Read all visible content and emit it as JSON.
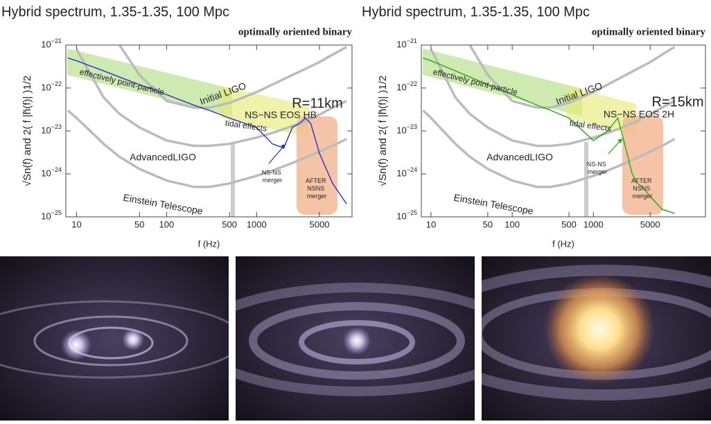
{
  "chart_data": [
    {
      "type": "line",
      "title": "Hybrid spectrum, 1.35-1.35, 100 Mpc",
      "subtitle": "optimally oriented binary",
      "x_label": "f (Hz)",
      "y_label": "√Sn(f)  and  2( f |h̃(f)| )1/2",
      "xscale": "log",
      "yscale": "log",
      "xlim": [
        7.6,
        11500
      ],
      "ylim": [
        1e-25,
        1e-21
      ],
      "xticks": [
        10,
        50,
        100,
        500,
        1000,
        5000
      ],
      "yticks": [
        {
          "value": 1e-25,
          "label": "10−25"
        },
        {
          "value": 1e-24,
          "label": "10−24"
        },
        {
          "value": 1e-23,
          "label": "10−23"
        },
        {
          "value": 1e-22,
          "label": "10−22"
        },
        {
          "value": 1e-21,
          "label": "10−21"
        }
      ],
      "x": [
        8,
        10,
        20,
        30,
        50,
        100,
        200,
        300,
        500,
        1000,
        1500,
        2000,
        2500,
        3000,
        3500,
        4000,
        5000,
        7000,
        10000
      ],
      "series": [
        {
          "name": "Initial LIGO",
          "color": "#bbbbbb",
          "values": [
            null,
            null,
            null,
            1e-21,
            2e-22,
            5e-23,
            3.5e-23,
            3.5e-23,
            4.5e-23,
            8e-23,
            1.2e-22,
            1.6e-22,
            2e-22,
            2.4e-22,
            2.8e-22,
            3.2e-22,
            4e-22,
            6e-22,
            9e-22
          ]
        },
        {
          "name": "AdvancedLIGO",
          "color": "#bbbbbb",
          "values": [
            null,
            8e-22,
            6e-23,
            2.5e-23,
            1.2e-23,
            6e-24,
            4.5e-24,
            4.5e-24,
            5e-24,
            7e-24,
            9e-24,
            1.1e-23,
            1.3e-23,
            1.5e-23,
            1.7e-23,
            2e-23,
            2.4e-23,
            3.5e-23,
            5e-23
          ]
        },
        {
          "name": "Einstein Telescope",
          "color": "#bbbbbb",
          "values": [
            3e-23,
            2e-23,
            5e-24,
            2.5e-24,
            1.3e-24,
            7e-25,
            5e-25,
            5e-25,
            6e-25,
            9e-25,
            1.2e-24,
            1.5e-24,
            1.8e-24,
            2.1e-24,
            2.4e-24,
            2.7e-24,
            3.3e-24,
            4.5e-24,
            6.5e-24
          ]
        },
        {
          "name": "R=11km",
          "color": "#2233cc",
          "values": [
            5e-22,
            4.3e-22,
            2.5e-22,
            1.8e-22,
            1.2e-22,
            7e-23,
            4e-23,
            3e-23,
            2e-23,
            1.2e-23,
            5e-24,
            4e-24,
            1.2e-23,
            1.5e-23,
            2e-23,
            1.5e-23,
            3e-24,
            6e-25,
            2e-25
          ]
        }
      ],
      "annotations": [
        "effectively point-particle",
        "tidal effects",
        "NS−NS EOS HB",
        "NS-NS merger",
        "AFTER NSNS merger"
      ]
    },
    {
      "type": "line",
      "title": "Hybrid spectrum, 1.35-1.35, 100 Mpc",
      "subtitle": "optimally oriented binary",
      "x_label": "f (Hz)",
      "y_label": "√Sn(f)  and  2( f |h̃(f)| )1/2",
      "xscale": "log",
      "yscale": "log",
      "xlim": [
        7.6,
        24000
      ],
      "ylim": [
        1e-25,
        1e-21
      ],
      "xticks": [
        10,
        50,
        100,
        500,
        1000,
        5000
      ],
      "yticks": [
        {
          "value": 1e-25,
          "label": "10−25"
        },
        {
          "value": 1e-24,
          "label": "10−24"
        },
        {
          "value": 1e-23,
          "label": "10−23"
        },
        {
          "value": 1e-22,
          "label": "10−22"
        },
        {
          "value": 1e-21,
          "label": "10−21"
        }
      ],
      "x": [
        8,
        10,
        20,
        30,
        50,
        100,
        200,
        300,
        500,
        1000,
        1500,
        2000,
        2500,
        3000,
        3500,
        4000,
        5000,
        7000,
        10000
      ],
      "series": [
        {
          "name": "Initial LIGO",
          "color": "#bbbbbb",
          "values": [
            null,
            null,
            null,
            1e-21,
            2e-22,
            5e-23,
            3.5e-23,
            3.5e-23,
            4.5e-23,
            8e-23,
            1.2e-22,
            1.6e-22,
            2e-22,
            2.4e-22,
            2.8e-22,
            3.2e-22,
            4e-22,
            6e-22,
            9e-22
          ]
        },
        {
          "name": "AdvancedLIGO",
          "color": "#bbbbbb",
          "values": [
            null,
            8e-22,
            6e-23,
            2.5e-23,
            1.2e-23,
            6e-24,
            4.5e-24,
            4.5e-24,
            5e-24,
            7e-24,
            9e-24,
            1.1e-23,
            1.3e-23,
            1.5e-23,
            1.7e-23,
            2e-23,
            2.4e-23,
            3.5e-23,
            5e-23
          ]
        },
        {
          "name": "Einstein Telescope",
          "color": "#bbbbbb",
          "values": [
            3e-23,
            2e-23,
            5e-24,
            2.5e-24,
            1.3e-24,
            7e-25,
            5e-25,
            5e-25,
            6e-25,
            9e-25,
            1.2e-24,
            1.5e-24,
            1.8e-24,
            2.1e-24,
            2.4e-24,
            2.7e-24,
            3.3e-24,
            4.5e-24,
            6.5e-24
          ]
        },
        {
          "name": "R=15km",
          "color": "#22aa11",
          "values": [
            5e-22,
            4.3e-22,
            2.5e-22,
            1.8e-22,
            1.2e-22,
            7e-23,
            4e-23,
            3e-23,
            2e-23,
            6e-24,
            1e-23,
            2e-23,
            4e-24,
            1e-24,
            6e-25,
            5e-25,
            3e-25,
            1.5e-25,
            1.2e-25
          ]
        }
      ],
      "annotations": [
        "effectively point-particle",
        "tidal effects",
        "NS−NS EOS 2H",
        "NS-NS merger",
        "AFTER NSNS merger"
      ]
    }
  ]
}
